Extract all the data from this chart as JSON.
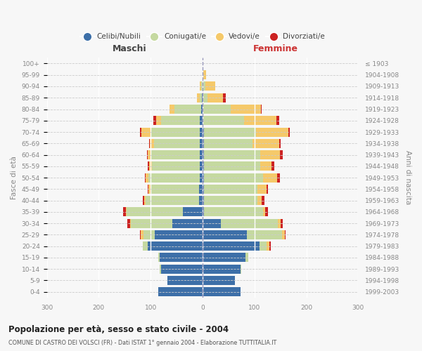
{
  "age_groups_bottom_to_top": [
    "0-4",
    "5-9",
    "10-14",
    "15-19",
    "20-24",
    "25-29",
    "30-34",
    "35-39",
    "40-44",
    "45-49",
    "50-54",
    "55-59",
    "60-64",
    "65-69",
    "70-74",
    "75-79",
    "80-84",
    "85-89",
    "90-94",
    "95-99",
    "100+"
  ],
  "birth_years_bottom_to_top": [
    "1999-2003",
    "1994-1998",
    "1989-1993",
    "1984-1988",
    "1979-1983",
    "1974-1978",
    "1969-1973",
    "1964-1968",
    "1959-1963",
    "1954-1958",
    "1949-1953",
    "1944-1948",
    "1939-1943",
    "1934-1938",
    "1929-1933",
    "1924-1928",
    "1919-1923",
    "1914-1918",
    "1909-1913",
    "1904-1908",
    "≤ 1903"
  ],
  "colors": {
    "celibi": "#3d6fa8",
    "coniugati": "#c5d9a0",
    "vedovi": "#f5c96a",
    "divorziati": "#cc2222"
  },
  "male_celibi": [
    85,
    68,
    80,
    83,
    105,
    92,
    58,
    38,
    7,
    7,
    6,
    5,
    5,
    5,
    5,
    5,
    2,
    1,
    0,
    0,
    0
  ],
  "male_coniugati": [
    0,
    0,
    2,
    2,
    10,
    22,
    80,
    108,
    102,
    92,
    98,
    93,
    95,
    88,
    95,
    75,
    52,
    5,
    2,
    0,
    0
  ],
  "male_vedovi": [
    0,
    0,
    0,
    0,
    0,
    5,
    2,
    2,
    4,
    5,
    5,
    5,
    5,
    8,
    18,
    10,
    10,
    5,
    4,
    0,
    0
  ],
  "male_divorziati": [
    0,
    0,
    0,
    0,
    0,
    2,
    5,
    5,
    2,
    2,
    2,
    2,
    2,
    2,
    2,
    5,
    0,
    0,
    0,
    0,
    0
  ],
  "female_celibi": [
    73,
    62,
    73,
    83,
    110,
    85,
    35,
    3,
    3,
    3,
    3,
    3,
    3,
    3,
    3,
    2,
    2,
    0,
    0,
    0,
    0
  ],
  "female_coniugati": [
    0,
    0,
    2,
    5,
    14,
    68,
    110,
    113,
    103,
    103,
    113,
    108,
    108,
    93,
    100,
    78,
    52,
    10,
    5,
    2,
    0
  ],
  "female_vedovi": [
    0,
    0,
    0,
    0,
    5,
    5,
    5,
    5,
    8,
    18,
    28,
    22,
    38,
    52,
    63,
    63,
    58,
    30,
    20,
    5,
    0
  ],
  "female_divorziati": [
    0,
    0,
    0,
    0,
    2,
    2,
    5,
    5,
    5,
    2,
    5,
    5,
    5,
    2,
    2,
    5,
    2,
    5,
    0,
    0,
    0
  ],
  "xlim": 300,
  "title": "Popolazione per età, sesso e stato civile - 2004",
  "subtitle": "COMUNE DI CASTRO DEI VOLSCI (FR) - Dati ISTAT 1° gennaio 2004 - Elaborazione TUTTITALIA.IT",
  "ylabel": "Fasce di età",
  "ylabel_right": "Anni di nascita",
  "label_maschi": "Maschi",
  "label_femmine": "Femmine",
  "legend_labels": [
    "Celibi/Nubili",
    "Coniugati/e",
    "Vedovi/e",
    "Divorziati/e"
  ],
  "bg_color": "#f7f7f7",
  "plot_bg": "#f7f7f7",
  "grid_x_color": "#ffffff",
  "grid_y_color": "#cccccc",
  "center_line_color": "#9999bb",
  "tick_color": "#888888",
  "maschi_color": "#444444",
  "femmine_color": "#cc3333"
}
